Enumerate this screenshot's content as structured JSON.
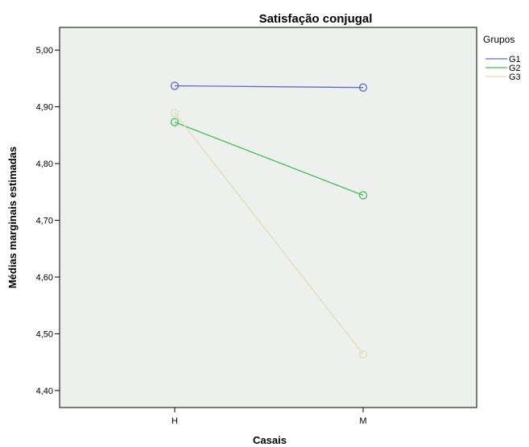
{
  "chart_data": {
    "type": "line",
    "title": "Satisfação conjugal",
    "xlabel": "Casais",
    "ylabel": "Médias marginais estimadas",
    "categories": [
      "H",
      "M"
    ],
    "ylim": [
      4.37,
      5.04
    ],
    "yticks": [
      "4,40",
      "4,50",
      "4,60",
      "4,70",
      "4,80",
      "4,90",
      "5,00"
    ],
    "ytick_values": [
      4.4,
      4.5,
      4.6,
      4.7,
      4.8,
      4.9,
      5.0
    ],
    "legend_title": "Grupos",
    "legend_position": "right",
    "grid": false,
    "background": "#eef0ee",
    "series": [
      {
        "name": "G1",
        "color": "#5a6fc4",
        "values": [
          4.937,
          4.934
        ]
      },
      {
        "name": "G2",
        "color": "#3fbe55",
        "values": [
          4.873,
          4.744
        ]
      },
      {
        "name": "G3",
        "color": "#e1dcae",
        "values": [
          4.889,
          4.464
        ]
      }
    ]
  }
}
